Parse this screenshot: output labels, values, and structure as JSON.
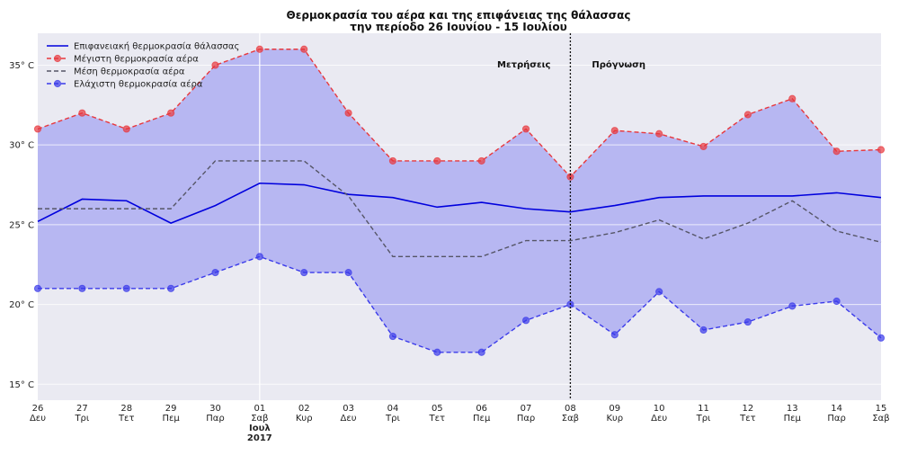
{
  "chart_data": {
    "type": "line",
    "title": "Θερμοκρασία του αέρα και της επιφάνειας της θάλασσας",
    "subtitle": "την περίοδο 26 Ιουνίου - 15 Ιουλίου",
    "x_labels": [
      {
        "day": "26",
        "weekday": "Δευ"
      },
      {
        "day": "27",
        "weekday": "Τρι"
      },
      {
        "day": "28",
        "weekday": "Τετ"
      },
      {
        "day": "29",
        "weekday": "Πεμ"
      },
      {
        "day": "30",
        "weekday": "Παρ"
      },
      {
        "day": "01",
        "weekday": "Σαβ",
        "month": "Ιουλ",
        "year": "2017"
      },
      {
        "day": "02",
        "weekday": "Κυρ"
      },
      {
        "day": "03",
        "weekday": "Δευ"
      },
      {
        "day": "04",
        "weekday": "Τρι"
      },
      {
        "day": "05",
        "weekday": "Τετ"
      },
      {
        "day": "06",
        "weekday": "Πεμ"
      },
      {
        "day": "07",
        "weekday": "Παρ"
      },
      {
        "day": "08",
        "weekday": "Σαβ"
      },
      {
        "day": "09",
        "weekday": "Κυρ"
      },
      {
        "day": "10",
        "weekday": "Δευ"
      },
      {
        "day": "11",
        "weekday": "Τρι"
      },
      {
        "day": "12",
        "weekday": "Τετ"
      },
      {
        "day": "13",
        "weekday": "Πεμ"
      },
      {
        "day": "14",
        "weekday": "Παρ"
      },
      {
        "day": "15",
        "weekday": "Σαβ"
      }
    ],
    "y_ticks": [
      15,
      20,
      25,
      30,
      35
    ],
    "y_tick_suffix": "° C",
    "ylim": [
      14,
      37
    ],
    "grid": true,
    "legend_position": "top-left",
    "series": [
      {
        "name": "Επιφανειακή θερμοκρασία θάλασσας",
        "color": "#0000dd",
        "dashed": false,
        "markers": false,
        "values": [
          25.2,
          26.6,
          26.5,
          25.1,
          26.2,
          27.6,
          27.5,
          26.9,
          26.7,
          26.1,
          26.4,
          26.0,
          25.8,
          26.2,
          26.7,
          26.8,
          26.8,
          26.8,
          27.0,
          26.7
        ]
      },
      {
        "name": "Μέγιστη θερμοκρασία αέρα",
        "color": "#e8383d",
        "dashed": true,
        "markers": true,
        "values": [
          31,
          32,
          31,
          32,
          35,
          36,
          36,
          32,
          29,
          29,
          29,
          31,
          28,
          30.9,
          30.7,
          29.9,
          31.9,
          32.9,
          29.6,
          29.7
        ]
      },
      {
        "name": "Μέση θερμοκρασία αέρα",
        "color": "#555566",
        "dashed": true,
        "markers": false,
        "values": [
          26,
          26,
          26,
          26,
          29,
          29,
          29,
          26.8,
          23,
          23,
          23,
          24,
          24,
          24.5,
          25.3,
          24.1,
          25.1,
          26.5,
          24.6,
          23.9
        ]
      },
      {
        "name": "Ελάχιστη θερμοκρασία αέρα",
        "color": "#3b3bea",
        "dashed": true,
        "markers": true,
        "values": [
          21,
          21,
          21,
          21,
          22,
          23,
          22,
          22,
          18,
          17,
          17,
          19,
          20,
          18.1,
          20.8,
          18.4,
          18.9,
          19.9,
          20.2,
          17.9
        ]
      }
    ],
    "band_color": "#b7b7f2",
    "plot_background": "#eaeaf2",
    "divider_index": 12,
    "annotations": {
      "left": "Μετρήσεις",
      "right": "Πρόγνωση"
    }
  }
}
